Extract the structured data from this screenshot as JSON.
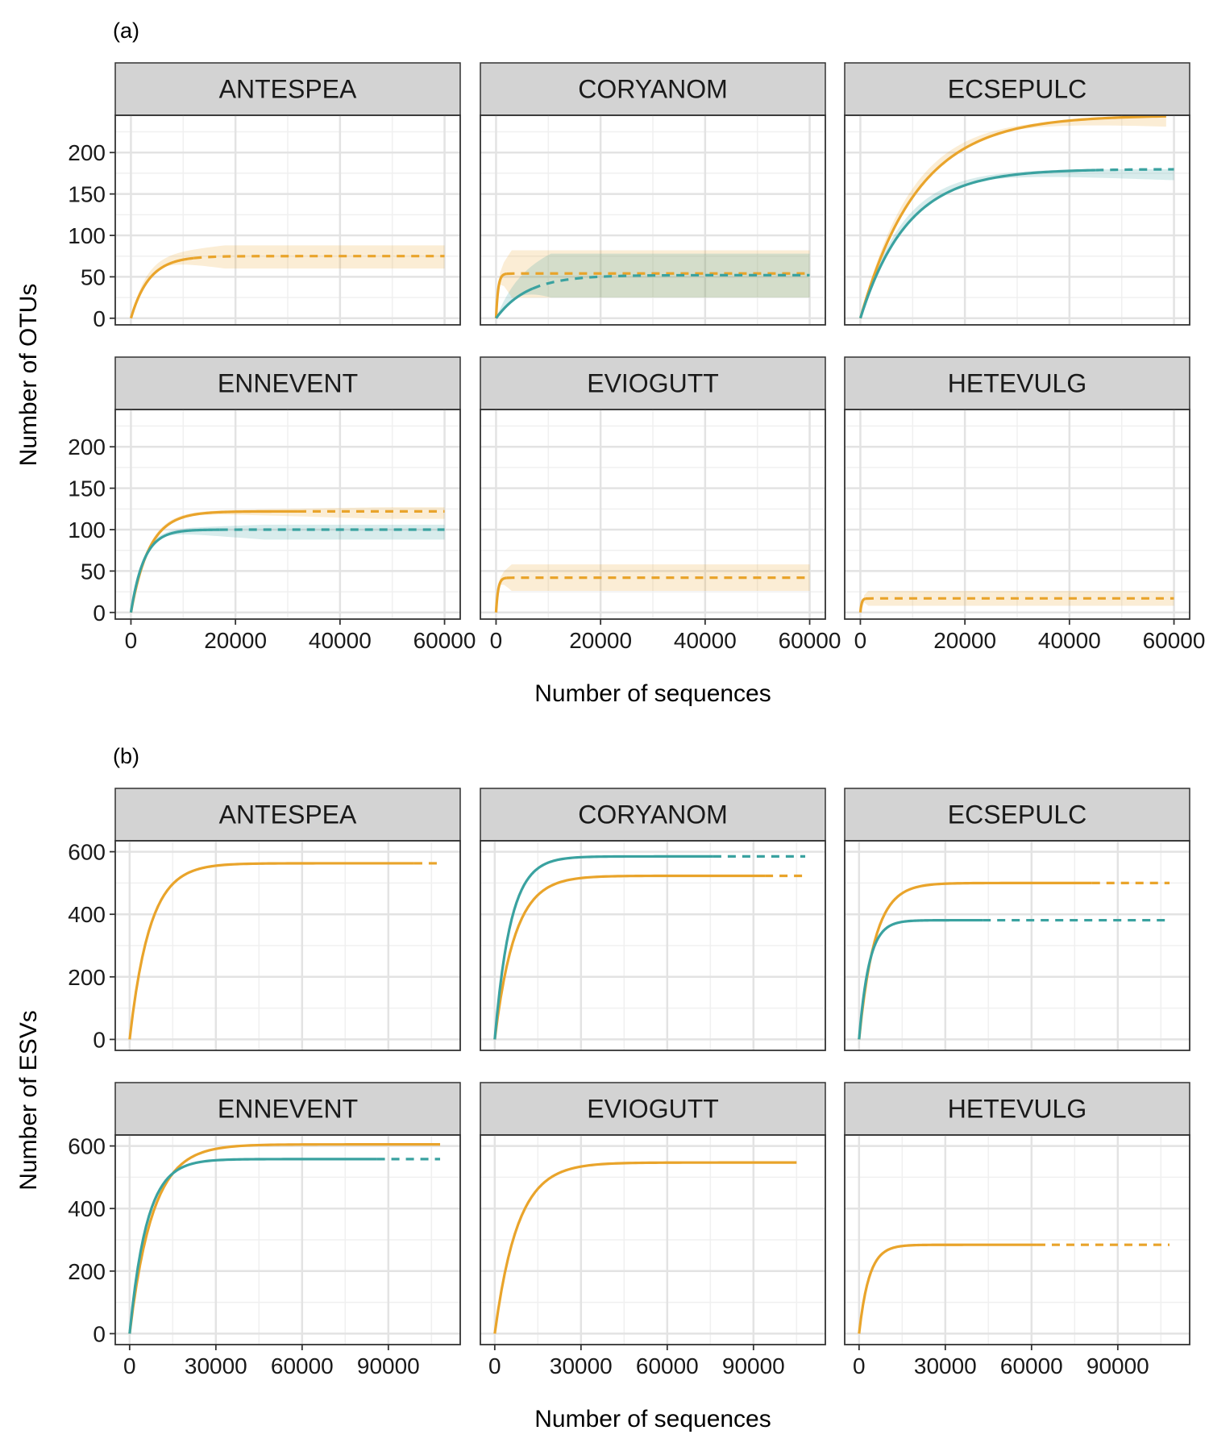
{
  "colors": {
    "orange": "#E9A42B",
    "teal": "#3AA2A0",
    "strip_bg": "#D3D3D3",
    "grid_major": "#E3E3E3",
    "grid_minor": "#F0F0F0",
    "border": "#333333"
  },
  "chart_data": [
    {
      "tag": "(a)",
      "type": "line",
      "xlabel": "Number of sequences",
      "ylabel": "Number of OTUs",
      "xlim": [
        -3000,
        63000
      ],
      "ylim": [
        -8,
        245
      ],
      "xticks": [
        0,
        20000,
        40000,
        60000
      ],
      "yticks": [
        0,
        50,
        100,
        150,
        200
      ],
      "grid": true,
      "facets": [
        {
          "name": "ANTESPEA",
          "series": [
            {
              "color": "orange",
              "asymptote": 75,
              "k": 3500,
              "n_obs": 12000,
              "x_end": 60000,
              "band": [
                60,
                88
              ]
            }
          ]
        },
        {
          "name": "CORYANOM",
          "series": [
            {
              "color": "orange",
              "asymptote": 54,
              "k": 400,
              "n_obs": 2000,
              "x_end": 60000,
              "band": [
                25,
                82
              ]
            },
            {
              "color": "teal",
              "asymptote": 52,
              "k": 6000,
              "n_obs": 7000,
              "x_end": 60000,
              "band": [
                25,
                78
              ]
            }
          ]
        },
        {
          "name": "ECSEPULC",
          "series": [
            {
              "color": "orange",
              "asymptote": 245,
              "k": 11000,
              "n_obs": 58500,
              "x_end": 58500,
              "band": [
                225,
                238
              ]
            },
            {
              "color": "teal",
              "asymptote": 180,
              "k": 9000,
              "n_obs": 45000,
              "x_end": 60000,
              "band": [
                165,
                180
              ]
            }
          ]
        },
        {
          "name": "ENNEVENT",
          "series": [
            {
              "color": "orange",
              "asymptote": 122,
              "k": 3500,
              "n_obs": 32000,
              "x_end": 60000,
              "band": [
                113,
                127
              ]
            },
            {
              "color": "teal",
              "asymptote": 100,
              "k": 2500,
              "n_obs": 17000,
              "x_end": 60000,
              "band": [
                88,
                106
              ]
            }
          ]
        },
        {
          "name": "EVIOGUTT",
          "series": [
            {
              "color": "orange",
              "asymptote": 42,
              "k": 400,
              "n_obs": 2000,
              "x_end": 60000,
              "band": [
                26,
                58
              ]
            }
          ]
        },
        {
          "name": "HETEVULG",
          "series": [
            {
              "color": "orange",
              "asymptote": 17,
              "k": 250,
              "n_obs": 1000,
              "x_end": 60000,
              "band": [
                8,
                26
              ]
            }
          ]
        }
      ]
    },
    {
      "tag": "(b)",
      "type": "line",
      "xlabel": "Number of sequences",
      "ylabel": "Number of ESVs",
      "xlim": [
        -5000,
        115000
      ],
      "ylim": [
        -35,
        635
      ],
      "xticks": [
        0,
        30000,
        60000,
        90000
      ],
      "yticks": [
        0,
        200,
        400,
        600
      ],
      "grid": true,
      "facets": [
        {
          "name": "ANTESPEA",
          "series": [
            {
              "color": "orange",
              "asymptote": 563,
              "k": 7000,
              "n_obs": 99000,
              "x_end": 108000
            }
          ]
        },
        {
          "name": "CORYANOM",
          "series": [
            {
              "color": "orange",
              "asymptote": 523,
              "k": 7000,
              "n_obs": 94000,
              "x_end": 108000
            },
            {
              "color": "teal",
              "asymptote": 585,
              "k": 5500,
              "n_obs": 76000,
              "x_end": 108000
            }
          ]
        },
        {
          "name": "ECSEPULC",
          "series": [
            {
              "color": "orange",
              "asymptote": 500,
              "k": 5500,
              "n_obs": 81000,
              "x_end": 108000
            },
            {
              "color": "teal",
              "asymptote": 381,
              "k": 3500,
              "n_obs": 43000,
              "x_end": 108000
            }
          ]
        },
        {
          "name": "ENNEVENT",
          "series": [
            {
              "color": "orange",
              "asymptote": 605,
              "k": 8000,
              "n_obs": 108000,
              "x_end": 108000
            },
            {
              "color": "teal",
              "asymptote": 558,
              "k": 6000,
              "n_obs": 86000,
              "x_end": 108000
            }
          ]
        },
        {
          "name": "EVIOGUTT",
          "series": [
            {
              "color": "orange",
              "asymptote": 547,
              "k": 8000,
              "n_obs": 105000,
              "x_end": 105000
            }
          ]
        },
        {
          "name": "HETEVULG",
          "series": [
            {
              "color": "orange",
              "asymptote": 284,
              "k": 3500,
              "n_obs": 62000,
              "x_end": 108000
            }
          ]
        }
      ]
    }
  ]
}
